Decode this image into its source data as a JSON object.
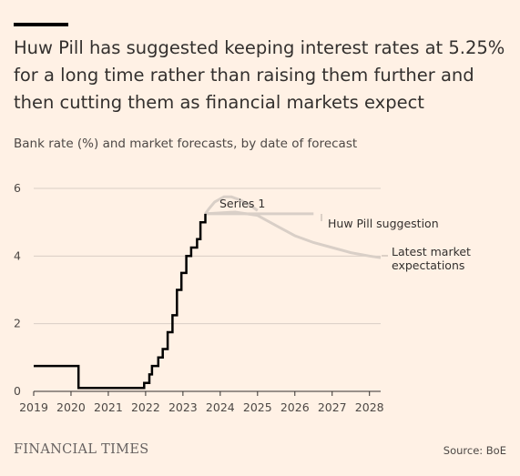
{
  "title": "Huw Pill has suggested keeping interest rates at 5.25% for a long time rather than raising them further and then cutting them as financial markets expect",
  "subtitle": "Bank rate (%) and market forecasts, by date of forecast",
  "brand": "FINANCIAL TIMES",
  "source": "Source: BoE",
  "chart_data": {
    "type": "line",
    "xlim": [
      2019,
      2028.3
    ],
    "ylim": [
      0,
      6
    ],
    "x_ticks": [
      2019,
      2020,
      2021,
      2022,
      2023,
      2024,
      2025,
      2026,
      2027,
      2028
    ],
    "y_ticks": [
      0,
      2,
      4,
      6
    ],
    "grid": true,
    "series": [
      {
        "key": "bank_rate",
        "color": "#000000",
        "step": true,
        "points": [
          [
            2019.0,
            0.75
          ],
          [
            2020.2,
            0.75
          ],
          [
            2020.2,
            0.1
          ],
          [
            2020.22,
            0.1
          ],
          [
            2021.96,
            0.1
          ],
          [
            2021.96,
            0.25
          ],
          [
            2022.1,
            0.25
          ],
          [
            2022.1,
            0.5
          ],
          [
            2022.17,
            0.5
          ],
          [
            2022.17,
            0.75
          ],
          [
            2022.34,
            0.75
          ],
          [
            2022.34,
            1.0
          ],
          [
            2022.46,
            1.0
          ],
          [
            2022.46,
            1.25
          ],
          [
            2022.59,
            1.25
          ],
          [
            2022.59,
            1.75
          ],
          [
            2022.72,
            1.75
          ],
          [
            2022.72,
            2.25
          ],
          [
            2022.84,
            2.25
          ],
          [
            2022.84,
            3.0
          ],
          [
            2022.96,
            3.0
          ],
          [
            2022.96,
            3.5
          ],
          [
            2023.09,
            3.5
          ],
          [
            2023.09,
            4.0
          ],
          [
            2023.22,
            4.0
          ],
          [
            2023.22,
            4.25
          ],
          [
            2023.38,
            4.25
          ],
          [
            2023.38,
            4.5
          ],
          [
            2023.47,
            4.5
          ],
          [
            2023.47,
            5.0
          ],
          [
            2023.6,
            5.0
          ],
          [
            2023.6,
            5.25
          ]
        ]
      },
      {
        "key": "series_1",
        "name": "Series 1",
        "color": "#d9cfc7",
        "points": [
          [
            2023.6,
            5.25
          ],
          [
            2023.7,
            5.4
          ],
          [
            2023.85,
            5.6
          ],
          [
            2024.1,
            5.75
          ],
          [
            2024.3,
            5.75
          ],
          [
            2024.55,
            5.65
          ],
          [
            2024.8,
            5.5
          ],
          [
            2025.0,
            5.35
          ]
        ]
      },
      {
        "key": "huw_pill",
        "name": "Huw Pill suggestion",
        "color": "#d9cfc7",
        "points": [
          [
            2023.6,
            5.25
          ],
          [
            2026.5,
            5.25
          ]
        ]
      },
      {
        "key": "market",
        "name": "Latest market expectations",
        "color": "#d9cfc7",
        "points": [
          [
            2023.6,
            5.25
          ],
          [
            2024.4,
            5.3
          ],
          [
            2025.0,
            5.2
          ],
          [
            2025.5,
            4.9
          ],
          [
            2026.0,
            4.6
          ],
          [
            2026.5,
            4.4
          ],
          [
            2027.0,
            4.25
          ],
          [
            2027.5,
            4.1
          ],
          [
            2028.0,
            4.0
          ],
          [
            2028.3,
            3.95
          ]
        ]
      }
    ]
  }
}
